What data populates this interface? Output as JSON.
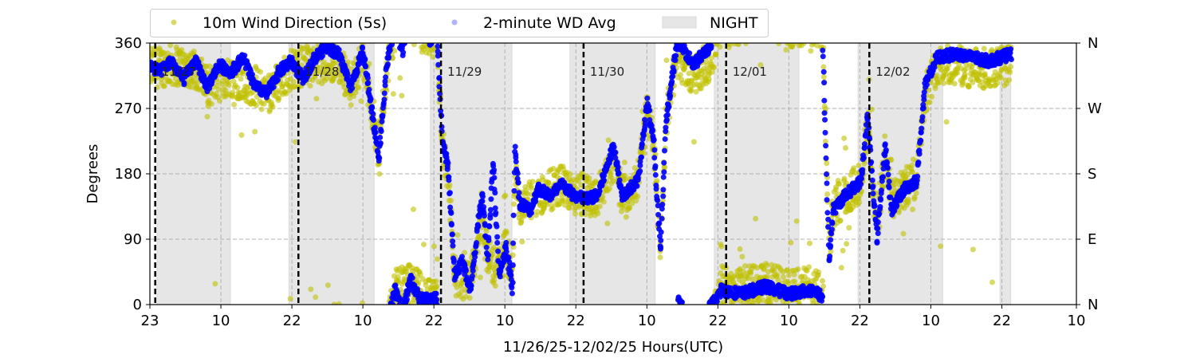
{
  "chart_data": {
    "type": "scatter",
    "title": "",
    "xlabel": "11/26/25-12/02/25  Hours(UTC)",
    "ylabel": "Degrees",
    "x_units": "hours since start of window (approx. 11/26 23 UTC)",
    "xlim": [
      0,
      156.6
    ],
    "ylim": [
      0,
      360
    ],
    "yticks": [
      0,
      90,
      180,
      270,
      360
    ],
    "ytick_labels": [
      "0",
      "90",
      "180",
      "270",
      "360"
    ],
    "right_ytick_labels": [
      "N",
      "E",
      "S",
      "W",
      "N"
    ],
    "xticks": [
      0,
      12,
      24,
      36,
      48,
      60,
      72,
      84,
      96,
      108,
      120,
      132,
      144,
      156.6
    ],
    "xtick_labels": [
      "23",
      "10",
      "22",
      "10",
      "22",
      "10",
      "22",
      "10",
      "22",
      "10",
      "22",
      "10",
      "22",
      "10"
    ],
    "grid": true,
    "day_markers": [
      {
        "x": 0.9,
        "label": "11/27"
      },
      {
        "x": 25.1,
        "label": "11/28"
      },
      {
        "x": 49.2,
        "label": "11/29"
      },
      {
        "x": 73.3,
        "label": "11/30"
      },
      {
        "x": 97.4,
        "label": "12/01"
      },
      {
        "x": 121.6,
        "label": "12/02"
      }
    ],
    "night_periods": [
      [
        1.2,
        13.6
      ],
      [
        23.5,
        37.9
      ],
      [
        47.4,
        61.2
      ],
      [
        71.0,
        85.4
      ],
      [
        95.4,
        109.7
      ],
      [
        119.7,
        134.0
      ],
      [
        143.7,
        145.5
      ]
    ],
    "legend": {
      "placement": "top",
      "entries": [
        "10m Wind Direction (5s)",
        "2-minute WD Avg",
        "NIGHT"
      ]
    },
    "colors": {
      "wd_5s": "#bfbf00",
      "wd_avg": "#0000ff",
      "night": "#e6e6e6"
    },
    "series": [
      {
        "name": "10m Wind Direction (5s)",
        "spread_deg": 28,
        "points": [
          [
            0,
            325
          ],
          [
            3.6,
            330
          ],
          [
            7.7,
            325
          ],
          [
            9.7,
            300
          ],
          [
            13.7,
            315
          ],
          [
            17.8,
            300
          ],
          [
            19.8,
            290
          ],
          [
            23.9,
            325
          ],
          [
            27.9,
            330
          ],
          [
            31.9,
            335
          ],
          [
            34,
            300
          ],
          [
            36,
            340
          ],
          [
            37.3,
            280
          ],
          [
            38.7,
            210
          ],
          [
            40,
            320
          ],
          [
            41.4,
            380
          ],
          [
            44.1,
            390
          ],
          [
            47.4,
            365
          ],
          [
            48.5,
            365
          ],
          [
            49.5,
            220
          ],
          [
            50.4,
            180
          ],
          [
            51.5,
            40
          ],
          [
            54.2,
            30
          ],
          [
            56.2,
            120
          ],
          [
            57.1,
            60
          ],
          [
            59,
            50
          ],
          [
            60.2,
            80
          ],
          [
            61.3,
            30
          ],
          [
            61.7,
            200
          ],
          [
            62.5,
            130
          ],
          [
            65.6,
            150
          ],
          [
            69.7,
            165
          ],
          [
            71.7,
            150
          ],
          [
            75.7,
            150
          ],
          [
            78.4,
            200
          ],
          [
            79.8,
            150
          ],
          [
            82.5,
            170
          ],
          [
            84.1,
            270
          ],
          [
            85.2,
            220
          ],
          [
            86.3,
            80
          ],
          [
            87.2,
            250
          ],
          [
            88.1,
            300
          ],
          [
            89.2,
            340
          ],
          [
            91.9,
            315
          ],
          [
            94.6,
            335
          ],
          [
            96.6,
            385
          ],
          [
            100,
            385
          ],
          [
            104,
            390
          ],
          [
            108.1,
            380
          ],
          [
            112.1,
            385
          ],
          [
            113.7,
            375
          ],
          [
            114.8,
            80
          ],
          [
            115.5,
            130
          ],
          [
            117.5,
            150
          ],
          [
            120.2,
            170
          ],
          [
            121.3,
            250
          ],
          [
            122.9,
            100
          ],
          [
            124.3,
            210
          ],
          [
            125.3,
            140
          ],
          [
            127.6,
            160
          ],
          [
            129.6,
            175
          ],
          [
            131,
            290
          ],
          [
            133,
            330
          ],
          [
            136.4,
            330
          ],
          [
            139.1,
            325
          ],
          [
            141.8,
            325
          ],
          [
            145.6,
            330
          ]
        ]
      },
      {
        "name": "2-minute WD Avg",
        "spread_deg": 8,
        "points": [
          [
            0,
            330
          ],
          [
            1.6,
            320
          ],
          [
            3.6,
            335
          ],
          [
            5.7,
            310
          ],
          [
            7.7,
            335
          ],
          [
            9.7,
            300
          ],
          [
            11.7,
            330
          ],
          [
            13.7,
            320
          ],
          [
            15.8,
            340
          ],
          [
            17.8,
            300
          ],
          [
            19.8,
            290
          ],
          [
            21.8,
            320
          ],
          [
            23.9,
            335
          ],
          [
            25.9,
            310
          ],
          [
            27.9,
            340
          ],
          [
            29.9,
            355
          ],
          [
            31.9,
            345
          ],
          [
            34,
            300
          ],
          [
            36,
            350
          ],
          [
            37.3,
            280
          ],
          [
            38.7,
            200
          ],
          [
            40,
            330
          ],
          [
            41.4,
            380
          ],
          [
            42.7,
            350
          ],
          [
            44.1,
            395
          ],
          [
            45.4,
            370
          ],
          [
            47.4,
            365
          ],
          [
            48.5,
            370
          ],
          [
            49.5,
            220
          ],
          [
            50.4,
            190
          ],
          [
            51.5,
            40
          ],
          [
            52.8,
            60
          ],
          [
            54.2,
            20
          ],
          [
            55.3,
            100
          ],
          [
            56.2,
            150
          ],
          [
            57.1,
            60
          ],
          [
            58,
            200
          ],
          [
            59,
            40
          ],
          [
            60.2,
            80
          ],
          [
            61.3,
            20
          ],
          [
            61.7,
            220
          ],
          [
            62.5,
            140
          ],
          [
            64.3,
            130
          ],
          [
            65.6,
            160
          ],
          [
            67.7,
            150
          ],
          [
            69.7,
            165
          ],
          [
            71.7,
            150
          ],
          [
            73.7,
            145
          ],
          [
            75.7,
            150
          ],
          [
            78.4,
            220
          ],
          [
            79.8,
            150
          ],
          [
            82.5,
            170
          ],
          [
            84.1,
            280
          ],
          [
            85.2,
            220
          ],
          [
            86.3,
            70
          ],
          [
            87.2,
            250
          ],
          [
            88.1,
            300
          ],
          [
            89.2,
            365
          ],
          [
            91.9,
            330
          ],
          [
            94.6,
            355
          ],
          [
            96.6,
            380
          ],
          [
            100,
            375
          ],
          [
            104,
            385
          ],
          [
            108.1,
            375
          ],
          [
            112.1,
            380
          ],
          [
            113.7,
            370
          ],
          [
            114.8,
            60
          ],
          [
            115.5,
            130
          ],
          [
            117.5,
            150
          ],
          [
            120.2,
            170
          ],
          [
            121.3,
            260
          ],
          [
            122.9,
            90
          ],
          [
            124.3,
            220
          ],
          [
            125.3,
            130
          ],
          [
            127.6,
            160
          ],
          [
            129.6,
            170
          ],
          [
            131,
            300
          ],
          [
            133,
            340
          ],
          [
            136.4,
            345
          ],
          [
            139.1,
            340
          ],
          [
            141.8,
            335
          ],
          [
            145.6,
            345
          ]
        ]
      }
    ]
  }
}
